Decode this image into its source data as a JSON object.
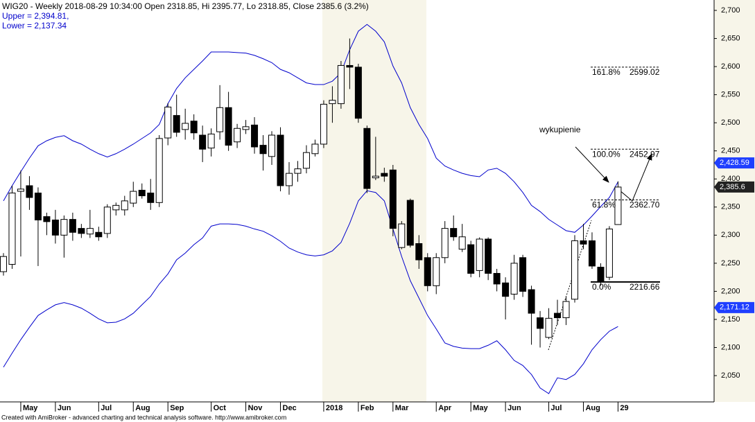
{
  "chart_data": {
    "type": "candlestick",
    "title": "WIG20 - Weekly 2018-08-29 10:34:00 Open 2318.85, Hi 2395.77, Lo 2318.85, Close 2385.6 (3.2%)",
    "footer": "Created with AmiBroker - advanced charting and technical analysis software. http://www.amibroker.com",
    "annotation": "wykupienie",
    "ohlc": [
      [
        2235,
        2268,
        2228,
        2262
      ],
      [
        2248,
        2388,
        2240,
        2375
      ],
      [
        2378,
        2415,
        2262,
        2382
      ],
      [
        2388,
        2405,
        2345,
        2367
      ],
      [
        2375,
        2385,
        2245,
        2327
      ],
      [
        2333,
        2340,
        2300,
        2324
      ],
      [
        2327,
        2345,
        2285,
        2300
      ],
      [
        2300,
        2335,
        2260,
        2328
      ],
      [
        2328,
        2340,
        2290,
        2305
      ],
      [
        2312,
        2320,
        2295,
        2303
      ],
      [
        2302,
        2345,
        2295,
        2312
      ],
      [
        2305,
        2315,
        2290,
        2297
      ],
      [
        2303,
        2355,
        2295,
        2350
      ],
      [
        2345,
        2358,
        2335,
        2353
      ],
      [
        2345,
        2370,
        2335,
        2361
      ],
      [
        2357,
        2395,
        2350,
        2378
      ],
      [
        2380,
        2392,
        2365,
        2370
      ],
      [
        2375,
        2400,
        2345,
        2358
      ],
      [
        2358,
        2478,
        2350,
        2472
      ],
      [
        2473,
        2535,
        2460,
        2528
      ],
      [
        2513,
        2550,
        2475,
        2483
      ],
      [
        2488,
        2525,
        2470,
        2499
      ],
      [
        2503,
        2515,
        2470,
        2482
      ],
      [
        2478,
        2495,
        2430,
        2453
      ],
      [
        2455,
        2490,
        2440,
        2480
      ],
      [
        2484,
        2567,
        2470,
        2527
      ],
      [
        2527,
        2555,
        2450,
        2460
      ],
      [
        2466,
        2498,
        2455,
        2490
      ],
      [
        2488,
        2505,
        2480,
        2493
      ],
      [
        2496,
        2510,
        2445,
        2457
      ],
      [
        2460,
        2478,
        2415,
        2445
      ],
      [
        2440,
        2485,
        2425,
        2478
      ],
      [
        2478,
        2492,
        2378,
        2388
      ],
      [
        2388,
        2430,
        2372,
        2410
      ],
      [
        2410,
        2432,
        2395,
        2418
      ],
      [
        2419,
        2460,
        2410,
        2447
      ],
      [
        2445,
        2470,
        2440,
        2462
      ],
      [
        2462,
        2540,
        2455,
        2533
      ],
      [
        2534,
        2565,
        2500,
        2540
      ],
      [
        2534,
        2610,
        2525,
        2602
      ],
      [
        2602,
        2650,
        2560,
        2599
      ],
      [
        2599,
        2605,
        2500,
        2508
      ],
      [
        2490,
        2495,
        2375,
        2383
      ],
      [
        2402,
        2475,
        2398,
        2405
      ],
      [
        2410,
        2420,
        2395,
        2405
      ],
      [
        2416,
        2425,
        2298,
        2312
      ],
      [
        2278,
        2325,
        2275,
        2320
      ],
      [
        2362,
        2365,
        2278,
        2282
      ],
      [
        2285,
        2300,
        2240,
        2256
      ],
      [
        2260,
        2268,
        2200,
        2210
      ],
      [
        2210,
        2268,
        2195,
        2260
      ],
      [
        2260,
        2325,
        2250,
        2312
      ],
      [
        2312,
        2335,
        2290,
        2297
      ],
      [
        2275,
        2320,
        2270,
        2297
      ],
      [
        2283,
        2290,
        2225,
        2232
      ],
      [
        2237,
        2296,
        2225,
        2293
      ],
      [
        2293,
        2296,
        2220,
        2232
      ],
      [
        2232,
        2240,
        2200,
        2213
      ],
      [
        2215,
        2225,
        2150,
        2191
      ],
      [
        2195,
        2265,
        2185,
        2250
      ],
      [
        2260,
        2265,
        2190,
        2200
      ],
      [
        2203,
        2210,
        2105,
        2161
      ],
      [
        2153,
        2165,
        2100,
        2134
      ],
      [
        2118,
        2170,
        2115,
        2152
      ],
      [
        2161,
        2185,
        2140,
        2153
      ],
      [
        2153,
        2190,
        2140,
        2182
      ],
      [
        2186,
        2300,
        2180,
        2290
      ],
      [
        2290,
        2320,
        2275,
        2284
      ],
      [
        2290,
        2305,
        2240,
        2245
      ],
      [
        2243,
        2250,
        2210,
        2218
      ],
      [
        2225,
        2316,
        2220,
        2311
      ],
      [
        2318.85,
        2395.77,
        2318.85,
        2385.6
      ]
    ],
    "series": [
      {
        "label": "Upper = 2,394.81,",
        "color": "#0000cc",
        "values": [
          2361,
          2388,
          2413,
          2437,
          2459,
          2468,
          2474,
          2477,
          2468,
          2462,
          2453,
          2445,
          2439,
          2445,
          2453,
          2462,
          2472,
          2482,
          2497,
          2534,
          2561,
          2580,
          2595,
          2610,
          2626,
          2626,
          2626,
          2625,
          2624,
          2620,
          2614,
          2607,
          2595,
          2589,
          2580,
          2571,
          2568,
          2568,
          2574,
          2589,
          2630,
          2663,
          2675,
          2663,
          2644,
          2601,
          2571,
          2527,
          2497,
          2472,
          2437,
          2423,
          2416,
          2410,
          2406,
          2404,
          2416,
          2419,
          2410,
          2395,
          2376,
          2353,
          2342,
          2328,
          2318,
          2308,
          2305,
          2318,
          2334,
          2351,
          2367,
          2394.81
        ]
      },
      {
        "label": "Lower = 2,137.34",
        "color": "#0000cc",
        "values": [
          2065,
          2090,
          2114,
          2136,
          2157,
          2167,
          2176,
          2180,
          2176,
          2170,
          2161,
          2151,
          2144,
          2145,
          2151,
          2161,
          2176,
          2191,
          2213,
          2231,
          2256,
          2268,
          2283,
          2295,
          2316,
          2320,
          2320,
          2319,
          2316,
          2311,
          2307,
          2299,
          2289,
          2277,
          2270,
          2265,
          2263,
          2265,
          2272,
          2287,
          2321,
          2361,
          2379,
          2376,
          2361,
          2311,
          2262,
          2219,
          2188,
          2157,
          2133,
          2108,
          2102,
          2099,
          2098,
          2098,
          2104,
          2112,
          2096,
          2077,
          2068,
          2052,
          2028,
          2018,
          2046,
          2043,
          2052,
          2071,
          2096,
          2114,
          2129,
          2137.34
        ]
      }
    ],
    "fib_levels": [
      {
        "ratio": "161.8%",
        "value": 2599.02
      },
      {
        "ratio": "100.0%",
        "value": 2452.97
      },
      {
        "ratio": "61.8%",
        "value": 2362.7,
        "label": "2362.70"
      },
      {
        "ratio": "0.0%",
        "value": 2216.66
      }
    ],
    "price_markers": [
      {
        "value": 2428.59,
        "label": "2,428.59",
        "color": "#1f3fff"
      },
      {
        "value": 2385.6,
        "label": "2,385.6",
        "color": "#222222"
      },
      {
        "value": 2171.12,
        "label": "2,171.12",
        "color": "#1f3fff"
      }
    ],
    "xlim": [
      -0.4,
      82.1
    ],
    "xticks": [
      {
        "value": 2,
        "label": "May"
      },
      {
        "value": 6,
        "label": "Jun"
      },
      {
        "value": 11,
        "label": "Jul"
      },
      {
        "value": 15,
        "label": "Aug"
      },
      {
        "value": 19,
        "label": "Sep"
      },
      {
        "value": 24,
        "label": "Oct"
      },
      {
        "value": 28,
        "label": "Nov"
      },
      {
        "value": 32,
        "label": "Dec"
      },
      {
        "value": 37,
        "label": "2018"
      },
      {
        "value": 41,
        "label": "Feb"
      },
      {
        "value": 45,
        "label": "Mar"
      },
      {
        "value": 50,
        "label": "Apr"
      },
      {
        "value": 54,
        "label": "May"
      },
      {
        "value": 58,
        "label": "Jun"
      },
      {
        "value": 63,
        "label": "Jul"
      },
      {
        "value": 67,
        "label": "Aug"
      },
      {
        "value": 71,
        "label": "29"
      }
    ],
    "ylim": [
      2003.2,
      2718.5
    ],
    "yticks": [
      {
        "value": 2050,
        "label": "2,050"
      },
      {
        "value": 2100,
        "label": "2,100"
      },
      {
        "value": 2150,
        "label": "2,150"
      },
      {
        "value": 2200,
        "label": "2,200"
      },
      {
        "value": 2250,
        "label": "2,250"
      },
      {
        "value": 2300,
        "label": "2,300"
      },
      {
        "value": 2350,
        "label": "2,350"
      },
      {
        "value": 2400,
        "label": "2,400"
      },
      {
        "value": 2450,
        "label": "2,450"
      },
      {
        "value": 2500,
        "label": "2,500"
      },
      {
        "value": 2550,
        "label": "2,550"
      },
      {
        "value": 2600,
        "label": "2,600"
      },
      {
        "value": 2650,
        "label": "2,650"
      },
      {
        "value": 2700,
        "label": "2,700"
      }
    ]
  }
}
